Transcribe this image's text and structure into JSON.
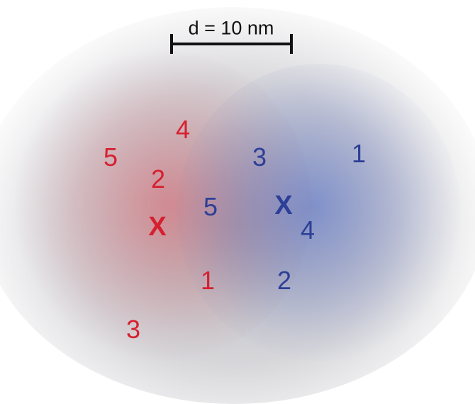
{
  "scale": {
    "label": "d = 10 nm"
  },
  "colors": {
    "red": "#d6202f",
    "blue": "#2d3f96",
    "bar": "#111111"
  },
  "red_points": {
    "p1": "1",
    "p2": "2",
    "p3": "3",
    "p4": "4",
    "p5": "5",
    "center": "X"
  },
  "blue_points": {
    "p1": "1",
    "p2": "2",
    "p3": "3",
    "p4": "4",
    "p5": "5",
    "center": "X"
  }
}
